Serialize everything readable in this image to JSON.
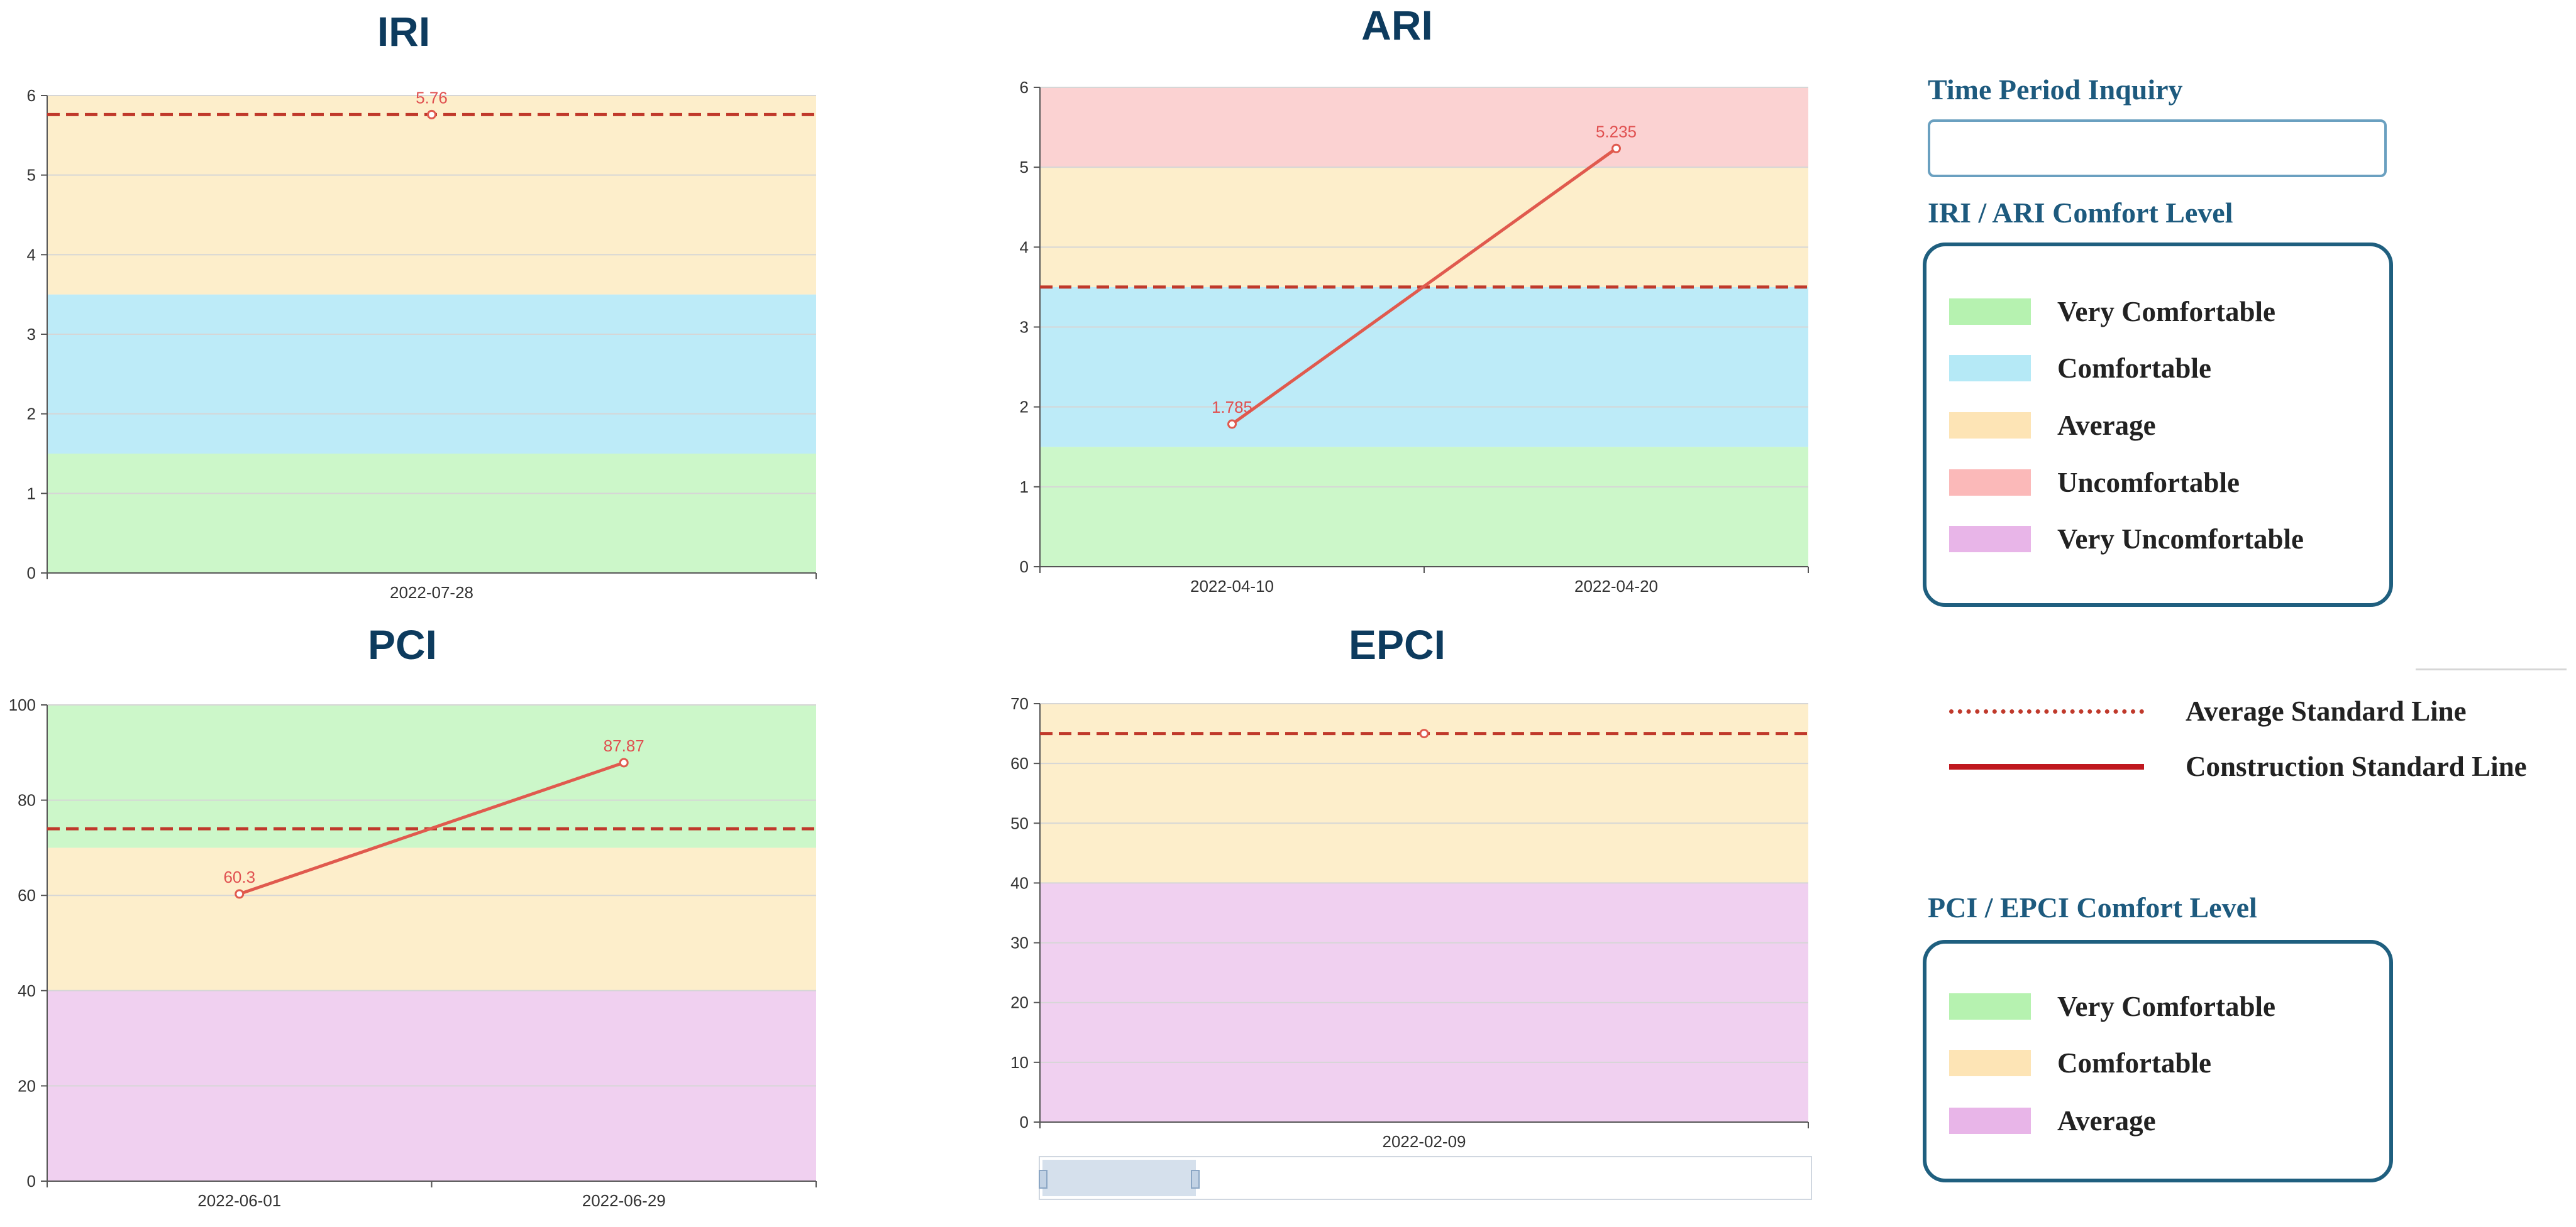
{
  "charts": [
    {
      "id": "iri",
      "title": "IRI",
      "chart_data": {
        "type": "line",
        "title": "IRI",
        "ylim": [
          0,
          6
        ],
        "y_ticks": [
          0,
          1,
          2,
          3,
          4,
          5,
          6
        ],
        "categories": [
          "2022-07-28"
        ],
        "values": [
          5.76
        ],
        "data_labels": [
          "5.76"
        ],
        "average_standard_line": 5.76,
        "bands": [
          {
            "from": 0,
            "to": 1.5,
            "color": "#ccf7c9"
          },
          {
            "from": 1.5,
            "to": 3.5,
            "color": "#bdebf8"
          },
          {
            "from": 3.5,
            "to": 6,
            "color": "#fdeecb"
          }
        ]
      }
    },
    {
      "id": "ari",
      "title": "ARI",
      "chart_data": {
        "type": "line",
        "title": "ARI",
        "ylim": [
          0,
          6
        ],
        "y_ticks": [
          0,
          1,
          2,
          3,
          4,
          5,
          6
        ],
        "categories": [
          "2022-04-10",
          "2022-04-20"
        ],
        "values": [
          1.785,
          5.235
        ],
        "data_labels": [
          "1.785",
          "5.235"
        ],
        "average_standard_line": 3.5,
        "bands": [
          {
            "from": 0,
            "to": 1.5,
            "color": "#ccf7c9"
          },
          {
            "from": 1.5,
            "to": 3.5,
            "color": "#bdebf8"
          },
          {
            "from": 3.5,
            "to": 5,
            "color": "#fdeecb"
          },
          {
            "from": 5,
            "to": 6,
            "color": "#fbd2d2"
          }
        ]
      }
    },
    {
      "id": "pci",
      "title": "PCI",
      "chart_data": {
        "type": "line",
        "title": "PCI",
        "ylim": [
          0,
          100
        ],
        "y_ticks": [
          0,
          20,
          40,
          60,
          80,
          100
        ],
        "categories": [
          "2022-06-01",
          "2022-06-29"
        ],
        "values": [
          60.3,
          87.87
        ],
        "data_labels": [
          "60.3",
          "87.87"
        ],
        "average_standard_line": 74,
        "bands": [
          {
            "from": 0,
            "to": 40,
            "color": "#f0d0f0"
          },
          {
            "from": 40,
            "to": 70,
            "color": "#fdeecb"
          },
          {
            "from": 70,
            "to": 100,
            "color": "#ccf7c9"
          }
        ]
      }
    },
    {
      "id": "epci",
      "title": "EPCI",
      "chart_data": {
        "type": "line",
        "title": "EPCI",
        "ylim": [
          0,
          70
        ],
        "y_ticks": [
          0,
          10,
          20,
          30,
          40,
          50,
          60,
          70
        ],
        "categories": [
          "2022-02-09"
        ],
        "values": [
          65
        ],
        "data_labels": [],
        "average_standard_line": 65,
        "bands": [
          {
            "from": 0,
            "to": 40,
            "color": "#f0d0f0"
          },
          {
            "from": 40,
            "to": 70,
            "color": "#fdeecb"
          }
        ]
      }
    }
  ],
  "sidebar": {
    "time_period_title": "Time Period Inquiry",
    "time_period_value": "",
    "iri_ari_title": "IRI / ARI Comfort Level",
    "iri_ari_levels": [
      {
        "label": "Very Comfortable",
        "color": "#b6f2b0"
      },
      {
        "label": "Comfortable",
        "color": "#b5e9f6"
      },
      {
        "label": "Average",
        "color": "#fde4b5"
      },
      {
        "label": "Uncomfortable",
        "color": "#fbb9b9"
      },
      {
        "label": "Very Uncomfortable",
        "color": "#e8b5e8"
      }
    ],
    "average_line_label": "Average Standard Line",
    "construction_line_label": "Construction Standard Line",
    "pci_epci_title": "PCI / EPCI Comfort Level",
    "pci_epci_levels": [
      {
        "label": "Very Comfortable",
        "color": "#b6f2b0"
      },
      {
        "label": "Comfortable",
        "color": "#fde4b5"
      },
      {
        "label": "Average",
        "color": "#e8b5e8"
      }
    ]
  },
  "colors": {
    "series_line": "#e05a4e",
    "average_line": "#c0392b",
    "construction_line": "#c0181f",
    "legend_border": "#1f5f7f",
    "title": "#0d3b5e"
  }
}
